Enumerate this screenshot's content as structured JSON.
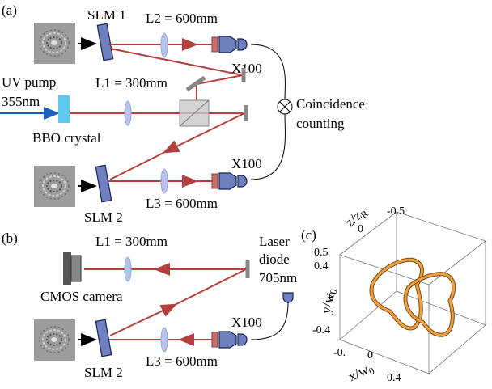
{
  "panels": {
    "a": {
      "label": "(a)",
      "slm1": "SLM 1",
      "l2": "L2 = 600mm",
      "objective_top": "X100",
      "uv_pump": "UV pump",
      "uv_wavelength": "355nm",
      "l1": "L1 = 300mm",
      "detector": [
        "Coincidence",
        "counting"
      ],
      "crystal": "BBO crystal",
      "objective_bottom": "X100",
      "slm2": "SLM 2",
      "l3": "L3 = 600mm"
    },
    "b": {
      "label": "(b)",
      "l1": "L1 = 300mm",
      "camera": "CMOS camera",
      "laser": [
        "Laser",
        "diode",
        "705nm"
      ],
      "objective": "X100",
      "slm2": "SLM 2",
      "l3": "L3 = 600mm"
    },
    "c": {
      "label": "(c)",
      "z_axis": {
        "title": "z/z",
        "subscript": "R",
        "ticks": [
          "-0.5",
          "0",
          "0.5"
        ]
      },
      "y_axis": {
        "title": "y/w",
        "subscript": "0",
        "ticks": [
          "0.4",
          "0",
          "-0.4"
        ]
      },
      "x_axis": {
        "title": "x/w",
        "subscript": "0",
        "ticks": [
          "-0.",
          "0",
          "0.4"
        ]
      }
    }
  }
}
